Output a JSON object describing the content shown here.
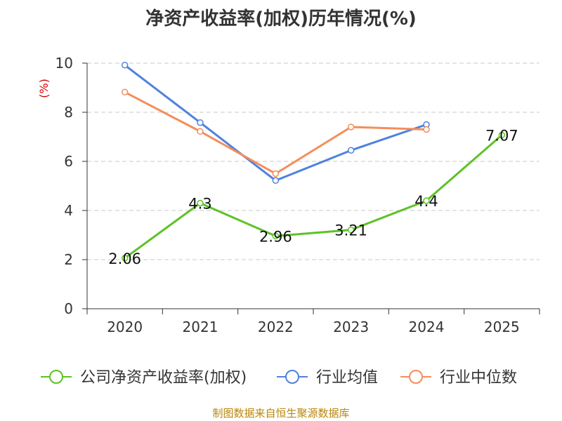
{
  "chart_data": {
    "type": "line",
    "title": "净资产收益率(加权)历年情况(%)",
    "ylabel": "(%)",
    "xlabel": "",
    "ylim": [
      0,
      10
    ],
    "yticks": [
      0,
      2,
      4,
      6,
      8,
      10
    ],
    "categories": [
      "2020",
      "2021",
      "2022",
      "2023",
      "2024",
      "2025"
    ],
    "grid": "horizontal-dashed",
    "legend_position": "bottom",
    "series": [
      {
        "name": "公司净资产收益率(加权)",
        "color": "#5dc227",
        "values": [
          2.06,
          4.3,
          2.96,
          3.21,
          4.4,
          7.07
        ],
        "labels": [
          "2.06",
          "4.3",
          "2.96",
          "3.21",
          "4.4",
          "7.07"
        ]
      },
      {
        "name": "行业均值",
        "color": "#4e82de",
        "values": [
          9.92,
          7.58,
          5.22,
          6.45,
          7.5,
          null
        ]
      },
      {
        "name": "行业中位数",
        "color": "#f58d5b",
        "values": [
          8.82,
          7.22,
          5.5,
          7.4,
          7.3,
          null
        ]
      }
    ]
  },
  "footer": "制图数据来自恒生聚源数据库"
}
